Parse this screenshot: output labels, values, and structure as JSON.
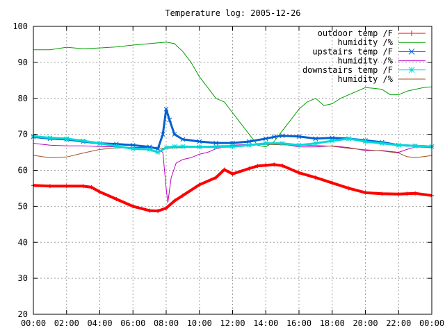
{
  "chart_data": {
    "type": "line",
    "title": "Temperature log: 2005-12-26",
    "xlabel": "",
    "ylabel": "",
    "x_ticks": [
      "00:00",
      "02:00",
      "04:00",
      "06:00",
      "08:00",
      "10:00",
      "12:00",
      "14:00",
      "16:00",
      "18:00",
      "20:00",
      "22:00",
      "00:00"
    ],
    "xlim_hours": [
      0,
      24
    ],
    "ylim": [
      20,
      100
    ],
    "y_ticks": [
      20,
      30,
      40,
      50,
      60,
      70,
      80,
      90,
      100
    ],
    "grid": true,
    "legend_position": "top-right",
    "series": [
      {
        "name": "outdoor temp /F",
        "color": "#ff0000",
        "marker": "+",
        "line_width": 4,
        "x": [
          0,
          1,
          2,
          3,
          3.5,
          4,
          5,
          6,
          7,
          7.5,
          8,
          8.5,
          9,
          10,
          11,
          11.5,
          12,
          13,
          13.5,
          14,
          14.5,
          15,
          16,
          17,
          18,
          19,
          20,
          21,
          22,
          22.5,
          23,
          24
        ],
        "y": [
          55.8,
          55.6,
          55.6,
          55.6,
          55.3,
          54,
          52,
          50,
          48.8,
          48.7,
          49.5,
          51.5,
          53,
          56,
          58,
          60.2,
          59,
          60.5,
          61.2,
          61.4,
          61.6,
          61.3,
          59.3,
          58,
          56.5,
          55,
          53.8,
          53.5,
          53.4,
          53.5,
          53.6,
          53
        ]
      },
      {
        "name": "humidity /%",
        "color": "#00a000",
        "marker": "",
        "line_width": 1,
        "x": [
          0,
          1,
          2,
          3,
          4,
          5,
          6,
          7,
          8,
          8.5,
          9,
          9.5,
          10,
          10.5,
          11,
          11.5,
          12,
          12.5,
          13,
          13.5,
          14,
          14.5,
          15,
          15.5,
          16,
          16.5,
          17,
          17.5,
          18,
          18.5,
          19,
          19.5,
          20,
          20.5,
          21,
          21.5,
          22,
          22.5,
          23,
          23.5,
          24
        ],
        "y": [
          93.5,
          93.5,
          94.2,
          93.8,
          94,
          94.3,
          94.8,
          95.2,
          95.6,
          95.2,
          93,
          90,
          86,
          83,
          80,
          79,
          76,
          73,
          70,
          67,
          66.5,
          68,
          71,
          74,
          77,
          79,
          80,
          78,
          78.5,
          80,
          81,
          82,
          83,
          82.8,
          82.5,
          81,
          81,
          82,
          82.5,
          83,
          83.2
        ]
      },
      {
        "name": "upstairs temp /F",
        "color": "#0060d0",
        "marker": "x",
        "line_width": 3,
        "x": [
          0,
          1,
          2,
          3,
          4,
          5,
          6,
          7,
          7.5,
          7.8,
          8,
          8.2,
          8.5,
          9,
          10,
          11,
          12,
          13,
          14,
          14.5,
          15,
          16,
          17,
          18,
          19,
          20,
          21,
          22,
          23,
          24
        ],
        "y": [
          69.3,
          68.8,
          68.6,
          68,
          67.5,
          67.3,
          67,
          66.5,
          66,
          70,
          77,
          74,
          70,
          68.6,
          68,
          67.6,
          67.6,
          68,
          68.8,
          69.3,
          69.6,
          69.4,
          68.8,
          69,
          68.8,
          68.3,
          67.8,
          67,
          66.8,
          66.6
        ]
      },
      {
        "name": "humidity /%",
        "color": "#c000c0",
        "marker": "",
        "line_width": 1,
        "x": [
          0,
          1,
          2,
          3,
          4,
          5,
          6,
          7,
          7.5,
          7.8,
          8,
          8.1,
          8.3,
          8.6,
          9,
          9.5,
          10,
          10.5,
          11,
          12,
          13,
          14,
          15,
          16,
          17,
          18,
          19,
          20,
          21,
          22,
          22.5,
          23,
          24
        ],
        "y": [
          67.5,
          67,
          66.8,
          66.8,
          66.6,
          66.5,
          66.3,
          66.3,
          66,
          65,
          55,
          51,
          58,
          62,
          63,
          63.5,
          64.5,
          65,
          66,
          67,
          67.2,
          67.5,
          67.3,
          66.5,
          66.5,
          66.8,
          66.3,
          65.5,
          65.5,
          65,
          65.8,
          66.5,
          66.3
        ]
      },
      {
        "name": "downstairs temp /F",
        "color": "#00d8d8",
        "marker": "*",
        "line_width": 3,
        "x": [
          0,
          1,
          2,
          3,
          4,
          5,
          6,
          7,
          7.5,
          8,
          8.5,
          9,
          10,
          11,
          12,
          13,
          14,
          15,
          16,
          17,
          18,
          19,
          20,
          21,
          22,
          23,
          24
        ],
        "y": [
          69.5,
          69,
          68.8,
          68.2,
          67.5,
          66.7,
          66,
          65.8,
          65,
          66.3,
          66.6,
          66.6,
          66.5,
          66.5,
          66.6,
          67,
          67.5,
          67.5,
          67,
          67.5,
          68.2,
          68.8,
          68,
          67.5,
          67,
          66.8,
          66.6
        ]
      },
      {
        "name": "humidity /%",
        "color": "#a05020",
        "marker": "",
        "line_width": 1,
        "x": [
          0,
          0.5,
          1,
          2,
          3,
          4,
          5,
          6,
          7,
          7.5,
          8,
          8.5,
          9,
          10,
          11,
          12,
          13,
          14,
          15,
          16,
          17,
          18,
          19,
          20,
          21,
          22,
          22.5,
          23,
          24
        ],
        "y": [
          64.2,
          63.8,
          63.5,
          63.7,
          64.8,
          65.8,
          66.2,
          66.3,
          66.5,
          66.2,
          66.1,
          66.2,
          66.3,
          66.6,
          66.8,
          66.9,
          67,
          67.2,
          67.1,
          67,
          66.9,
          66.7,
          66.1,
          65.7,
          65.4,
          64.8,
          63.8,
          63.5,
          64.1
        ]
      }
    ]
  }
}
